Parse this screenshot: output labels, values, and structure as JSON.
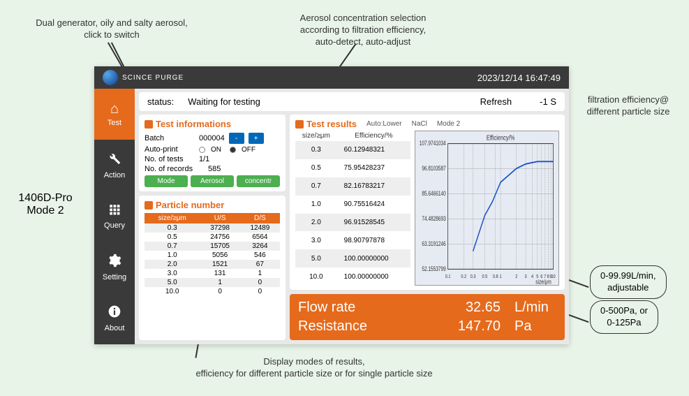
{
  "annotations": {
    "top_left": "Dual generator, oily and salty aerosol,\nclick to switch",
    "top_center": "Aerosol concentration selection\naccording to filtration efficiency,\nauto-detect, auto-adjust",
    "right_top": "filtration efficiency@\ndifferent particle size",
    "bottom": "Display modes of results,\nefficiency for different particle size or for single particle size",
    "callout_flow": "0-99.99L/min,\nadjustable",
    "callout_resist": "0-500Pa, or\n0-125Pa",
    "model": "1406D-Pro\nMode 2"
  },
  "titlebar": {
    "brand": "SCINCE  PURGE",
    "timestamp": "2023/12/14 16:47:49"
  },
  "sidebar": {
    "items": [
      {
        "icon": "⌂",
        "label": "Test"
      },
      {
        "icon": "⚙",
        "label": "Action"
      },
      {
        "icon": "▦",
        "label": "Query"
      },
      {
        "icon": "✱",
        "label": "Setting"
      },
      {
        "icon": "ⓘ",
        "label": "About"
      }
    ]
  },
  "status": {
    "label": "status:",
    "value": "Waiting for testing",
    "refresh_label": "Refresh",
    "refresh_value": "-1 S"
  },
  "testinfo": {
    "title": "Test informations",
    "batch_label": "Batch",
    "batch_value": "000004",
    "autoprint_label": "Auto-print",
    "on": "ON",
    "off": "OFF",
    "ntests_label": "No. of tests",
    "ntests_value": "1/1",
    "nrecords_label": "No. of records",
    "nrecords_value": "585",
    "mode_btn": "Mode",
    "aerosol_btn": "Aerosol",
    "conc_btn": "concentr"
  },
  "particle": {
    "title": "Particle number",
    "columns": [
      "size/≥μm",
      "U/S",
      "D/S"
    ],
    "rows": [
      [
        "0.3",
        "37298",
        "12489"
      ],
      [
        "0.5",
        "24756",
        "6564"
      ],
      [
        "0.7",
        "15705",
        "3264"
      ],
      [
        "1.0",
        "5056",
        "546"
      ],
      [
        "2.0",
        "1521",
        "67"
      ],
      [
        "3.0",
        "131",
        "1"
      ],
      [
        "5.0",
        "1",
        "0"
      ],
      [
        "10.0",
        "0",
        "0"
      ]
    ]
  },
  "results": {
    "title": "Test results",
    "tags": [
      "Auto:Lower",
      "NaCl",
      "Mode 2"
    ],
    "columns": [
      "size/≥μm",
      "Efficiency/%"
    ],
    "rows": [
      [
        "0.3",
        "60.12948321"
      ],
      [
        "0.5",
        "75.95428237"
      ],
      [
        "0.7",
        "82.16783217"
      ],
      [
        "1.0",
        "90.75516424"
      ],
      [
        "2.0",
        "96.91528545"
      ],
      [
        "3.0",
        "98.90797878"
      ],
      [
        "5.0",
        "100.00000000"
      ],
      [
        "10.0",
        "100.00000000"
      ]
    ]
  },
  "chart": {
    "title": "Efficiency/%",
    "xlabel": "size/μm",
    "yticks": [
      "107.9741034",
      "96.8103587",
      "85.6466140",
      "74.4828693",
      "63.3191246",
      "52.1553799"
    ],
    "xticks": [
      "0.1",
      "0.2",
      "0.3",
      "0.5",
      "0.8",
      "1",
      "2",
      "3",
      "4",
      "5",
      "6",
      "7",
      "8",
      "9",
      "10"
    ],
    "series_color": "#1a4ec9",
    "x_log": [
      0.3,
      0.5,
      0.7,
      1.0,
      2.0,
      3.0,
      5.0,
      10.0
    ],
    "y": [
      60.13,
      75.95,
      82.17,
      90.76,
      96.92,
      98.91,
      100.0,
      100.0
    ],
    "ylim": [
      52.16,
      107.97
    ],
    "xlim_log": [
      0.1,
      10
    ],
    "grid_color": "#808080",
    "background_color": "#e6eaf2"
  },
  "flow": {
    "flow_label": "Flow rate",
    "flow_value": "32.65",
    "flow_unit": "L/min",
    "resist_label": "Resistance",
    "resist_value": "147.70",
    "resist_unit": "Pa"
  }
}
